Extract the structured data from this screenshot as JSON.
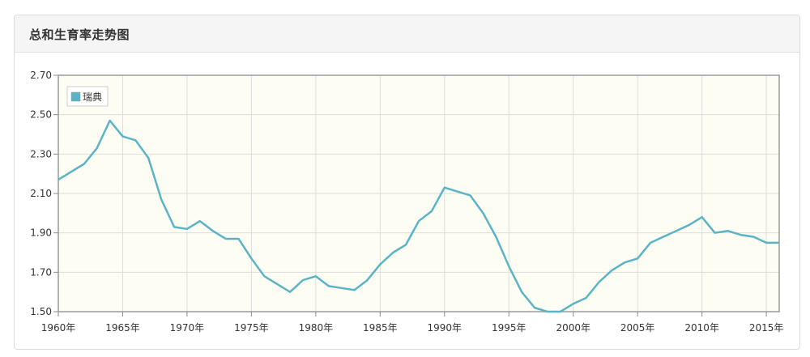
{
  "panel": {
    "title": "总和生育率走势图"
  },
  "chart_data": {
    "type": "line",
    "title": "总和生育率走势图",
    "xlabel": "",
    "ylabel": "",
    "xlim": [
      1960,
      2016
    ],
    "ylim": [
      1.5,
      2.7
    ],
    "y_ticks": [
      "1.50",
      "1.70",
      "1.90",
      "2.10",
      "2.30",
      "2.50",
      "2.70"
    ],
    "x_ticks": [
      "1960年",
      "1965年",
      "1970年",
      "1975年",
      "1980年",
      "1985年",
      "1990年",
      "1995年",
      "2000年",
      "2005年",
      "2010年",
      "2015年"
    ],
    "grid": true,
    "legend": "top-left",
    "background": "#fdfdf3",
    "series": [
      {
        "name": "瑞典",
        "color": "#5ab4c6",
        "x": [
          1960,
          1961,
          1962,
          1963,
          1964,
          1965,
          1966,
          1967,
          1968,
          1969,
          1970,
          1971,
          1972,
          1973,
          1974,
          1975,
          1976,
          1977,
          1978,
          1979,
          1980,
          1981,
          1982,
          1983,
          1984,
          1985,
          1986,
          1987,
          1988,
          1989,
          1990,
          1991,
          1992,
          1993,
          1994,
          1995,
          1996,
          1997,
          1998,
          1999,
          2000,
          2001,
          2002,
          2003,
          2004,
          2005,
          2006,
          2007,
          2008,
          2009,
          2010,
          2011,
          2012,
          2013,
          2014,
          2015,
          2016
        ],
        "values": [
          2.17,
          2.21,
          2.25,
          2.33,
          2.47,
          2.39,
          2.37,
          2.28,
          2.07,
          1.93,
          1.92,
          1.96,
          1.91,
          1.87,
          1.87,
          1.77,
          1.68,
          1.64,
          1.6,
          1.66,
          1.68,
          1.63,
          1.62,
          1.61,
          1.66,
          1.74,
          1.8,
          1.84,
          1.96,
          2.01,
          2.13,
          2.11,
          2.09,
          2.0,
          1.88,
          1.73,
          1.6,
          1.52,
          1.5,
          1.5,
          1.54,
          1.57,
          1.65,
          1.71,
          1.75,
          1.77,
          1.85,
          1.88,
          1.91,
          1.94,
          1.98,
          1.9,
          1.91,
          1.89,
          1.88,
          1.85,
          1.85
        ]
      }
    ]
  }
}
